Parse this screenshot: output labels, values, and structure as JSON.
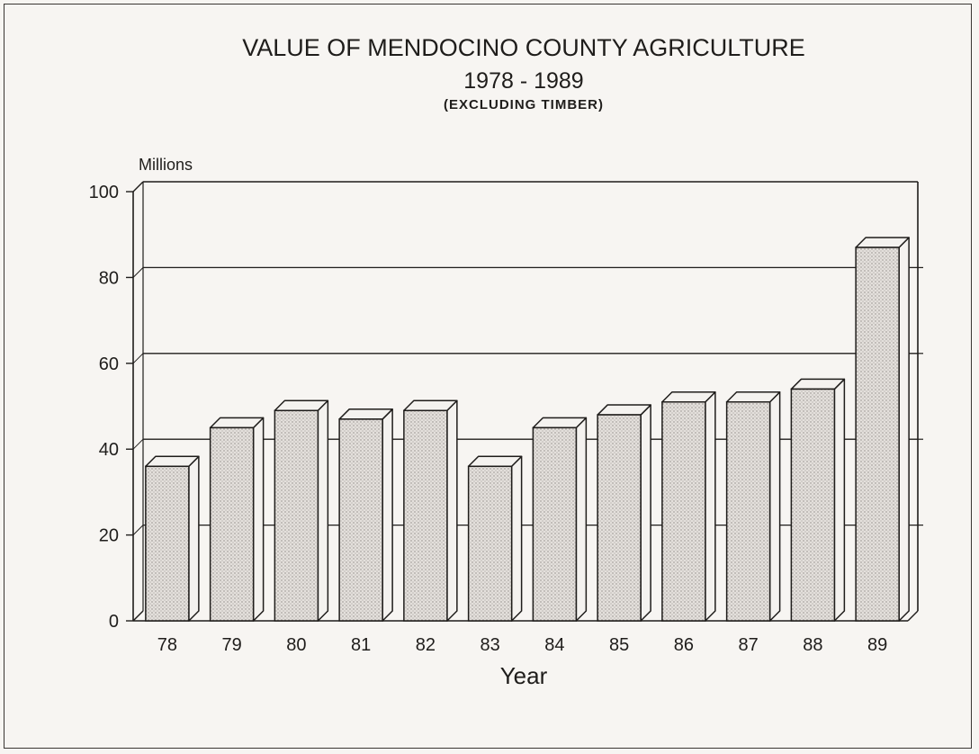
{
  "chart_data": {
    "type": "bar",
    "title": "VALUE OF MENDOCINO COUNTY AGRICULTURE",
    "subtitle": "1978 - 1989",
    "note": "(EXCLUDING TIMBER)",
    "ylabel": "Millions",
    "xlabel": "Year",
    "categories": [
      "78",
      "79",
      "80",
      "81",
      "82",
      "83",
      "84",
      "85",
      "86",
      "87",
      "88",
      "89"
    ],
    "values": [
      36,
      45,
      49,
      47,
      49,
      36,
      45,
      48,
      51,
      51,
      54,
      87
    ],
    "ylim": [
      0,
      100
    ],
    "yticks": [
      "0",
      "20",
      "40",
      "60",
      "80",
      "100"
    ],
    "grid": true,
    "style": "3d-bars"
  },
  "colors": {
    "ink": "#1f1d1b",
    "bar_fill": "#dcd8d3",
    "bar_side": "#f4f2ef",
    "paper": "#f7f5f2"
  }
}
